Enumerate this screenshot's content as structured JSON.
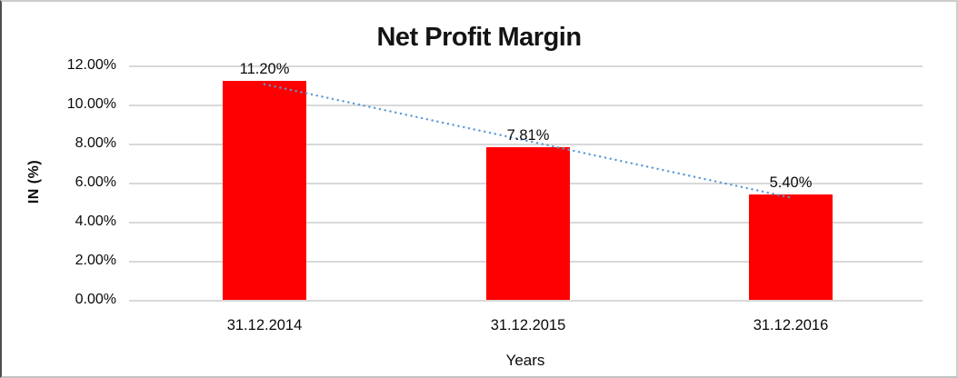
{
  "chart_data": {
    "type": "bar",
    "title": "Net Profit Margin",
    "categories": [
      "31.12.2014",
      "31.12.2015",
      "31.12.2016"
    ],
    "values": [
      11.2,
      7.81,
      5.4
    ],
    "data_labels": [
      "11.20%",
      "7.81%",
      "5.40%"
    ],
    "xlabel": "Years",
    "ylabel": "IN (%)",
    "ylim": [
      0,
      12
    ],
    "y_tick_labels": [
      "0.00%",
      "2.00%",
      "4.00%",
      "6.00%",
      "8.00%",
      "10.00%",
      "12.00%"
    ],
    "grid": true,
    "legend": "none",
    "bar_color": "#FF0000",
    "trendline": {
      "type": "linear",
      "style": "dotted",
      "color": "#5B9BD5"
    },
    "gridline_color": "#D9D9D9",
    "text_color": "#0A0A0A"
  }
}
